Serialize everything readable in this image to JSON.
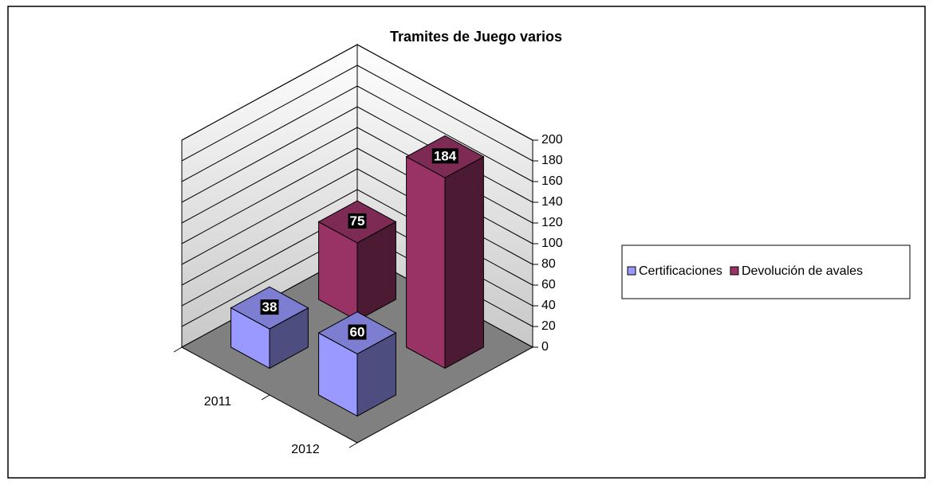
{
  "chart_data": {
    "type": "bar3d",
    "title": "Tramites de Juego varios",
    "categories": [
      "2011",
      "2012"
    ],
    "series": [
      {
        "name": "Certificaciones",
        "color": "#9999ff",
        "values": [
          38,
          60
        ]
      },
      {
        "name": "Devolución de avales",
        "color": "#993366",
        "values": [
          75,
          184
        ]
      }
    ],
    "ylim": [
      0,
      200
    ],
    "yticks": [
      0,
      20,
      40,
      60,
      80,
      100,
      120,
      140,
      160,
      180,
      200
    ],
    "grid": true,
    "legend": "right"
  }
}
